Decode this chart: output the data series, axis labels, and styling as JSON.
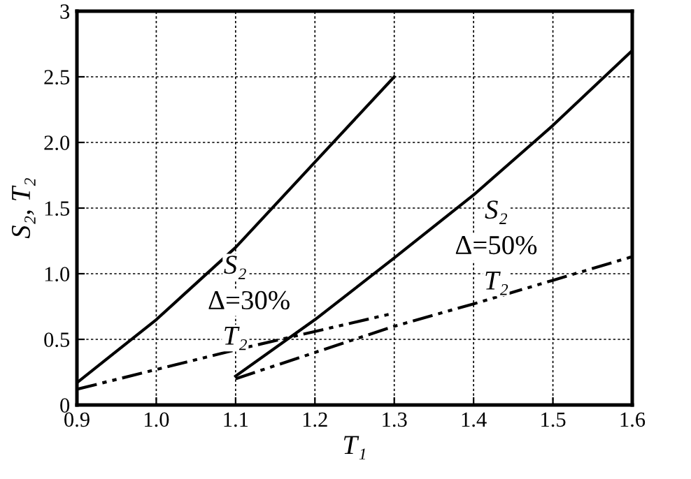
{
  "chart_data": {
    "type": "line",
    "xlabel": "T₁",
    "ylabel": "S₂, T₂",
    "xlim": [
      0.9,
      1.6
    ],
    "xticks": [
      0.9,
      {
        "value": 1,
        "label": "1.0"
      },
      1.1,
      1.2,
      1.3,
      1.4,
      1.5,
      1.6
    ],
    "ylim": [
      0,
      3
    ],
    "yticks": [
      0,
      0.5,
      {
        "value": 1,
        "label": "1.0"
      },
      1.5,
      {
        "value": 2,
        "label": "2.0"
      },
      2.5,
      3
    ],
    "grid": true,
    "marker": "none",
    "series": [
      {
        "color": "#000000",
        "line_style": "solid",
        "x": [
          0.9,
          1.0,
          1.1,
          1.2,
          1.3
        ],
        "values": [
          0.17,
          0.65,
          1.2,
          1.85,
          2.5
        ]
      },
      {
        "color": "#000000",
        "line_style": "dashed",
        "x": [
          0.9,
          1.0,
          1.1,
          1.2,
          1.3
        ],
        "values": [
          0.12,
          0.27,
          0.42,
          0.56,
          0.7
        ]
      },
      {
        "color": "#000000",
        "line_style": "solid",
        "x": [
          1.1,
          1.2,
          1.3,
          1.4,
          1.5,
          1.6
        ],
        "values": [
          0.22,
          0.65,
          1.12,
          1.6,
          2.13,
          2.7
        ]
      },
      {
        "color": "#000000",
        "line_style": "dashed",
        "x": [
          1.1,
          1.2,
          1.3,
          1.4,
          1.5,
          1.6
        ],
        "values": [
          0.2,
          0.4,
          0.6,
          0.77,
          0.95,
          1.13
        ]
      }
    ],
    "annotations": [
      "S₂",
      "Δ=30%",
      "T₂",
      "S₂",
      "Δ=50%",
      "T₂"
    ]
  }
}
